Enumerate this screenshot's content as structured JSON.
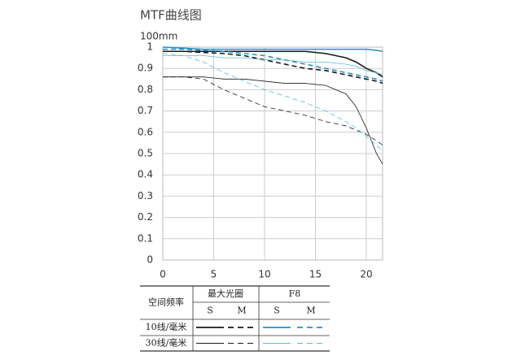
{
  "chart_data": {
    "type": "line",
    "title": "MTF曲线图",
    "subtitle": "100mm",
    "x": [
      0,
      2,
      4,
      6,
      8,
      10,
      12,
      14,
      16,
      18,
      19,
      20,
      21,
      21.6
    ],
    "xlim": [
      0,
      21.6
    ],
    "xticks": [
      0,
      5,
      10,
      15,
      20
    ],
    "ylim": [
      0,
      1
    ],
    "yticks": [
      0,
      0.1,
      0.2,
      0.3,
      0.4,
      0.5,
      0.6,
      0.7,
      0.8,
      0.9,
      1
    ],
    "grid": true,
    "series": [
      {
        "color": "#1a1a1a",
        "width": 2,
        "dash": false,
        "values": [
          0.98,
          0.98,
          0.98,
          0.98,
          0.98,
          0.98,
          0.98,
          0.98,
          0.97,
          0.95,
          0.93,
          0.9,
          0.88,
          0.86
        ]
      },
      {
        "color": "#1a1a1a",
        "width": 2,
        "dash": true,
        "values": [
          0.98,
          0.98,
          0.975,
          0.97,
          0.96,
          0.94,
          0.92,
          0.9,
          0.89,
          0.87,
          0.86,
          0.85,
          0.84,
          0.83
        ]
      },
      {
        "color": "#2a8fc7",
        "width": 2,
        "dash": false,
        "values": [
          1,
          0.995,
          0.99,
          0.99,
          0.99,
          0.99,
          0.99,
          0.99,
          0.99,
          0.99,
          0.99,
          0.99,
          0.985,
          0.98
        ]
      },
      {
        "color": "#2a8fc7",
        "width": 2,
        "dash": true,
        "values": [
          0.99,
          0.99,
          0.985,
          0.98,
          0.97,
          0.96,
          0.94,
          0.92,
          0.9,
          0.88,
          0.87,
          0.86,
          0.85,
          0.84
        ]
      },
      {
        "color": "#1a1a1a",
        "width": 1,
        "dash": false,
        "values": [
          0.86,
          0.86,
          0.86,
          0.85,
          0.85,
          0.84,
          0.83,
          0.83,
          0.82,
          0.78,
          0.72,
          0.62,
          0.5,
          0.45
        ]
      },
      {
        "color": "#1a1a1a",
        "width": 1,
        "dash": true,
        "values": [
          0.86,
          0.86,
          0.85,
          0.8,
          0.76,
          0.72,
          0.7,
          0.68,
          0.65,
          0.63,
          0.61,
          0.59,
          0.56,
          0.54
        ]
      },
      {
        "color": "#5bb8d8",
        "width": 1,
        "dash": false,
        "values": [
          0.96,
          0.96,
          0.96,
          0.95,
          0.95,
          0.94,
          0.94,
          0.93,
          0.93,
          0.92,
          0.91,
          0.89,
          0.88,
          0.87
        ]
      },
      {
        "color": "#5bb8d8",
        "width": 1,
        "dash": true,
        "values": [
          0.97,
          0.96,
          0.93,
          0.88,
          0.84,
          0.8,
          0.77,
          0.74,
          0.7,
          0.65,
          0.62,
          0.58,
          0.54,
          0.51
        ]
      }
    ],
    "legend": {
      "header": "空间频率",
      "groups": [
        "最大光圈",
        "F8"
      ],
      "subheaders": [
        "S",
        "M",
        "S",
        "M"
      ],
      "rows": [
        "10线/毫米",
        "30线/毫米"
      ]
    }
  }
}
